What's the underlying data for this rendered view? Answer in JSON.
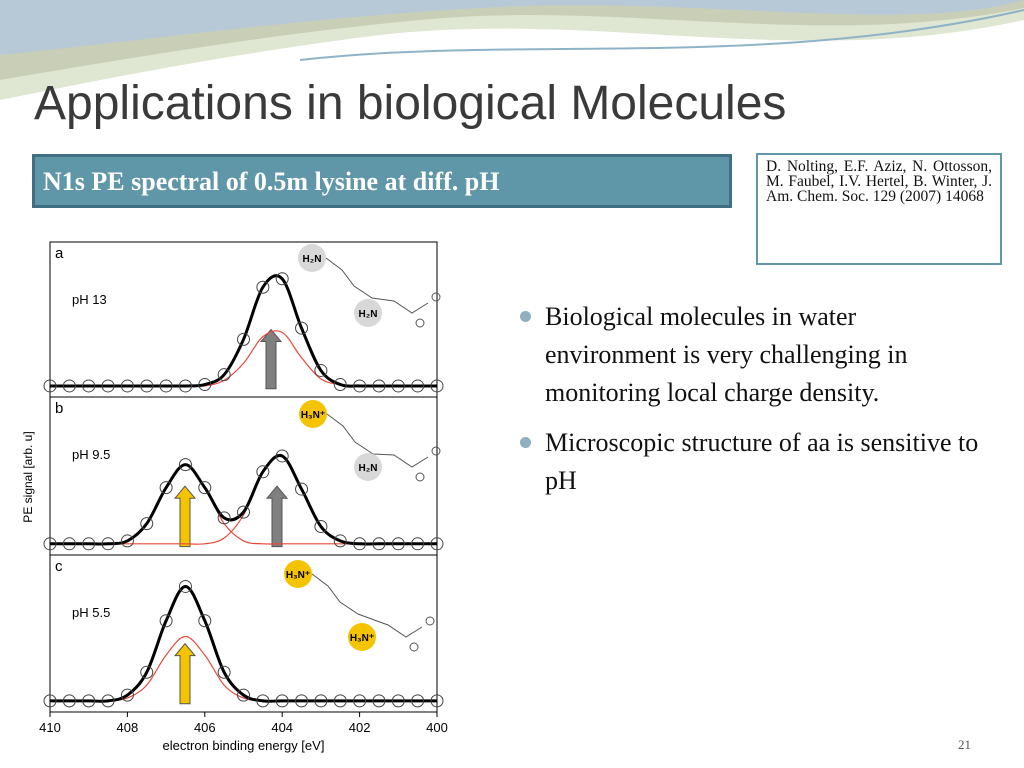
{
  "slide": {
    "title": "Applications in biological Molecules",
    "box": "N1s PE spectral of 0.5m lysine at diff. pH",
    "citation": "D. Nolting, E.F. Aziz, N. Ottosson, M. Faubel, I.V. Hertel, B. Winter, J. Am. Chem. Soc. 129 (2007) 14068",
    "bullets": [
      "Biological molecules in water environment is very challenging in monitoring local charge density.",
      "Microscopic structure of aa is sensitive to pH"
    ],
    "page_number": "21"
  },
  "chart_data": {
    "type": "line",
    "x_label": "electron binding energy [eV]",
    "y_label": "PE signal [arb. u]",
    "xlim": [
      410,
      400
    ],
    "xticks": [
      410,
      408,
      406,
      404,
      402,
      400
    ],
    "ylim": [
      0,
      1
    ],
    "x": [
      410,
      409.5,
      409,
      408.5,
      408,
      407.5,
      407,
      406.5,
      406,
      405.5,
      405,
      404.5,
      404,
      403.5,
      403,
      402.5,
      402,
      401.5,
      401,
      400.5,
      400
    ],
    "panels": [
      {
        "label": "a",
        "annotation": "pH 13",
        "molecule_labels": [
          "H₂N",
          "H₂N"
        ],
        "series": [
          {
            "color": "#000000",
            "values": [
              0.05,
              0.05,
              0.05,
              0.05,
              0.05,
              0.05,
              0.05,
              0.05,
              0.06,
              0.13,
              0.38,
              0.75,
              0.81,
              0.46,
              0.16,
              0.06,
              0.05,
              0.05,
              0.05,
              0.05,
              0.05
            ]
          },
          {
            "color": "#e8483a",
            "values": [
              0.05,
              0.05,
              0.05,
              0.05,
              0.05,
              0.05,
              0.05,
              0.05,
              0.05,
              0.09,
              0.21,
              0.4,
              0.43,
              0.25,
              0.1,
              0.06,
              0.05,
              0.05,
              0.05,
              0.05,
              0.05
            ]
          }
        ]
      },
      {
        "label": "b",
        "annotation": "pH 9.5",
        "molecule_labels": [
          "H₃N⁺",
          "H₂N"
        ],
        "series": [
          {
            "color": "#000000",
            "values": [
              0.05,
              0.05,
              0.05,
              0.05,
              0.07,
              0.19,
              0.44,
              0.6,
              0.44,
              0.23,
              0.27,
              0.55,
              0.66,
              0.43,
              0.17,
              0.07,
              0.05,
              0.05,
              0.05,
              0.05,
              0.05
            ]
          },
          {
            "color": "#e8483a",
            "values": [
              0.05,
              0.05,
              0.05,
              0.05,
              0.07,
              0.19,
              0.44,
              0.6,
              0.44,
              0.19,
              0.07,
              0.05,
              0.05,
              0.05,
              0.05,
              0.05,
              0.05,
              0.05,
              0.05,
              0.05,
              0.05
            ]
          },
          {
            "color": "#e8483a",
            "values": [
              0.05,
              0.05,
              0.05,
              0.05,
              0.05,
              0.05,
              0.05,
              0.05,
              0.05,
              0.09,
              0.25,
              0.55,
              0.66,
              0.43,
              0.17,
              0.07,
              0.05,
              0.05,
              0.05,
              0.05,
              0.05
            ]
          }
        ]
      },
      {
        "label": "c",
        "annotation": "pH 5.5",
        "molecule_labels": [
          "H₃N⁺",
          "H₃N⁺"
        ],
        "series": [
          {
            "color": "#000000",
            "values": [
              0.05,
              0.05,
              0.05,
              0.05,
              0.09,
              0.25,
              0.61,
              0.85,
              0.61,
              0.25,
              0.09,
              0.05,
              0.05,
              0.05,
              0.05,
              0.05,
              0.05,
              0.05,
              0.05,
              0.05,
              0.05
            ]
          },
          {
            "color": "#e8483a",
            "values": [
              0.05,
              0.05,
              0.05,
              0.05,
              0.07,
              0.16,
              0.37,
              0.5,
              0.37,
              0.16,
              0.07,
              0.05,
              0.05,
              0.05,
              0.05,
              0.05,
              0.05,
              0.05,
              0.05,
              0.05,
              0.05
            ]
          }
        ]
      }
    ]
  }
}
